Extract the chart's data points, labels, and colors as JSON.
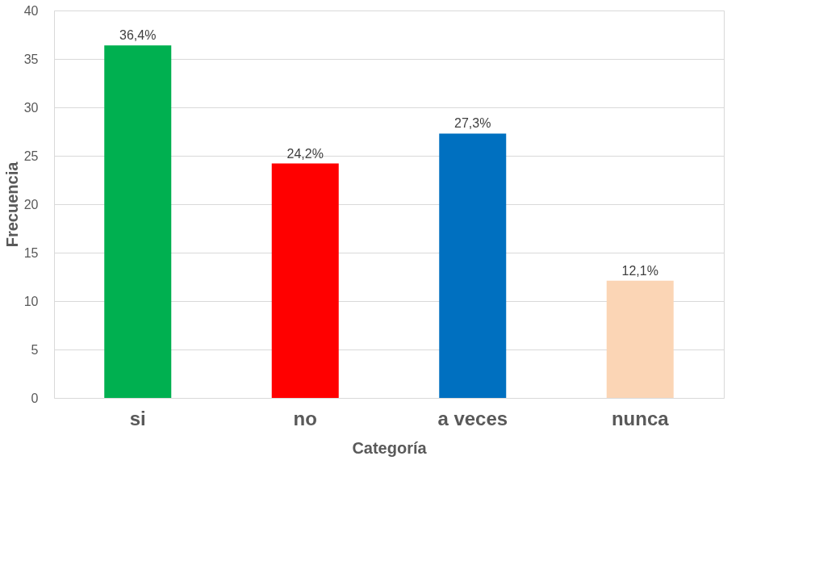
{
  "chart_data": {
    "type": "bar",
    "xlabel": "Categoría",
    "ylabel": "Frecuencia",
    "categories": [
      "si",
      "no",
      "a veces",
      "nunca"
    ],
    "values": [
      36.4,
      24.2,
      27.3,
      12.1
    ],
    "colors": [
      "#00b050",
      "#ff0000",
      "#0070c0",
      "#fbd5b5"
    ],
    "value_labels": [
      "36,4%",
      "24,2%",
      "27,3%",
      "12,1%"
    ],
    "ylim": [
      0,
      40
    ],
    "yticks": [
      0,
      5,
      10,
      15,
      20,
      25,
      30,
      35,
      40
    ],
    "grid": "y"
  }
}
